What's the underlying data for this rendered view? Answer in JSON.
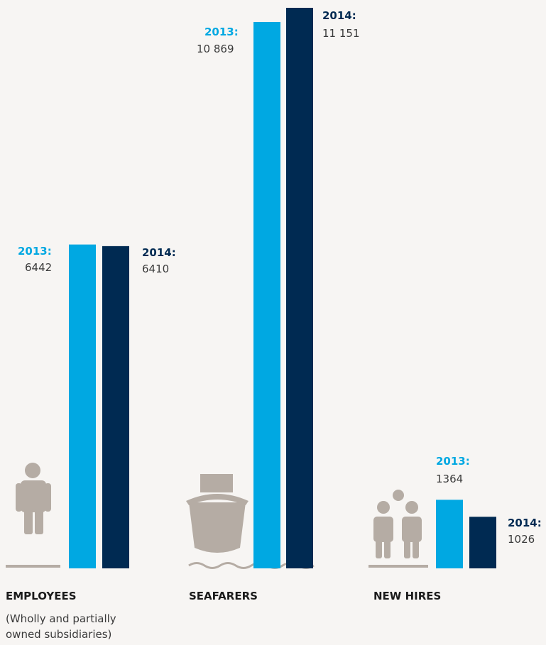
{
  "colors": {
    "y2013": "#00a8e2",
    "y2014": "#002a52",
    "icon": "#b5aca4",
    "background": "#f7f5f3"
  },
  "icons": [
    "person-icon",
    "ship-icon",
    "group-icon"
  ],
  "chart_data": {
    "type": "bar",
    "categories": [
      "EMPLOYEES",
      "SEAFARERS",
      "NEW HIRES"
    ],
    "subtitles": [
      "(Wholly and partially",
      "owned subsidiaries)"
    ],
    "series": [
      {
        "name": "2013",
        "label": "2013:",
        "values": [
          6442,
          10869,
          1364
        ],
        "display": [
          "6442",
          "10 869",
          "1364"
        ]
      },
      {
        "name": "2014",
        "label": "2014:",
        "values": [
          6410,
          11151,
          1026
        ],
        "display": [
          "6410",
          "11 151",
          "1026"
        ]
      }
    ],
    "ylim": [
      0,
      11151
    ],
    "grid": false
  }
}
